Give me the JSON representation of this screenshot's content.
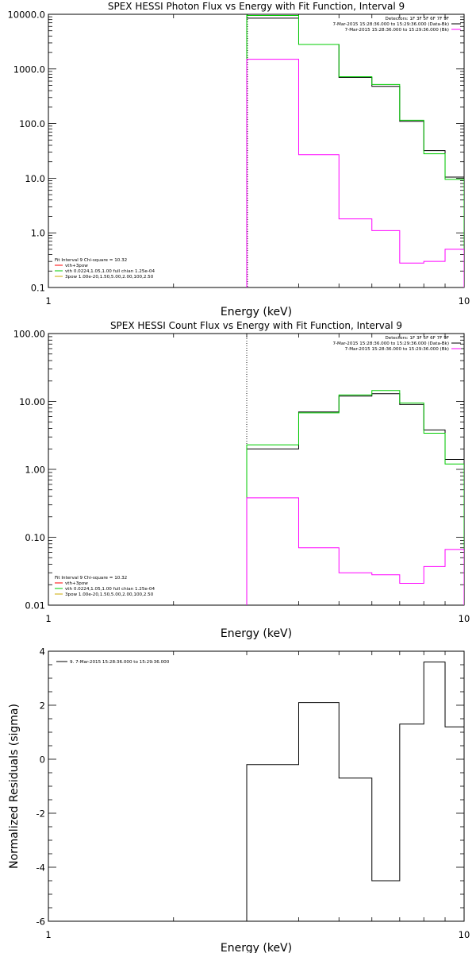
{
  "colors": {
    "data": "#000000",
    "model": "#00cc00",
    "background": "#ff00ff",
    "vth": "#ff0000",
    "vth_model": "#00cc00",
    "bpow": "#ccaa00"
  },
  "chart_data": [
    {
      "type": "line",
      "title": "SPEX HESSI Photon Flux vs Energy with Fit Function, Interval 9",
      "xlabel": "Energy (keV)",
      "ylabel": "",
      "xscale": "log",
      "yscale": "log",
      "xlim": [
        1,
        10
      ],
      "ylim": [
        0.1,
        10000
      ],
      "xticks": [
        {
          "v": 1,
          "label": "1"
        },
        {
          "v": 10,
          "label": "10"
        }
      ],
      "yticks": [
        {
          "v": 0.1,
          "label": "0.1"
        },
        {
          "v": 1,
          "label": "1.0"
        },
        {
          "v": 10,
          "label": "10.0"
        },
        {
          "v": 100,
          "label": "100.0"
        },
        {
          "v": 1000,
          "label": "1000.0"
        },
        {
          "v": 10000,
          "label": "10000.0"
        }
      ],
      "vline": {
        "x": 3.0,
        "style": "green-dotted"
      },
      "legend_lines": [
        {
          "text": "Detectors: 1F 3F 5F 6F 7F 9F",
          "color": "none"
        },
        {
          "text": "7-Mar-2015 15:28:36.000 to 15:29:36.000 (Data-Bk)",
          "color": "data"
        },
        {
          "text": "7-Mar-2015 15:28:36.000 to 15:29:36.000 (Bk)",
          "color": "background"
        }
      ],
      "fit_legend": [
        {
          "text": "Fit Interval 9   Chi-square = 10.32",
          "color": "none"
        },
        {
          "text": "vth+3pow",
          "color": "vth"
        },
        {
          "text": "vth 0.0224,1.05,1.00  full chian 1.25e-04",
          "color": "vth_model"
        },
        {
          "text": "3pow 1.00e-20,1.50,5.00,2.00,100,2.50",
          "color": "bpow"
        }
      ],
      "series": [
        {
          "key": "data",
          "style": "step",
          "edges": [
            3,
            4,
            5,
            6,
            7,
            8,
            9,
            10
          ],
          "values": [
            8500,
            2800,
            700,
            480,
            110,
            32,
            10.5
          ]
        },
        {
          "key": "model",
          "style": "step",
          "edges": [
            3,
            4,
            5,
            6,
            7,
            8,
            9,
            10
          ],
          "values": [
            9500,
            2800,
            720,
            520,
            115,
            28,
            9.5
          ]
        },
        {
          "key": "background",
          "style": "step",
          "edges": [
            3,
            4,
            5,
            6,
            7,
            8,
            9,
            10
          ],
          "values": [
            1500,
            27,
            1.8,
            1.1,
            0.28,
            0.3,
            0.5
          ]
        }
      ]
    },
    {
      "type": "line",
      "title": "SPEX HESSI Count Flux vs Energy with Fit Function, Interval 9",
      "xlabel": "Energy (keV)",
      "ylabel": "",
      "xscale": "log",
      "yscale": "log",
      "xlim": [
        1,
        10
      ],
      "ylim": [
        0.01,
        100
      ],
      "xticks": [
        {
          "v": 1,
          "label": "1"
        },
        {
          "v": 10,
          "label": "10"
        }
      ],
      "yticks": [
        {
          "v": 0.01,
          "label": "0.01"
        },
        {
          "v": 0.1,
          "label": "0.10"
        },
        {
          "v": 1,
          "label": "1.00"
        },
        {
          "v": 10,
          "label": "10.00"
        },
        {
          "v": 100,
          "label": "100.00"
        }
      ],
      "vline": {
        "x": 3.0,
        "style": "black-dotted"
      },
      "legend_lines": [
        {
          "text": "Detectors: 1F 3F 5F 6F 7F 9F",
          "color": "none"
        },
        {
          "text": "7-Mar-2015 15:28:36.000 to 15:29:36.000 (Data-Bk)",
          "color": "data"
        },
        {
          "text": "7-Mar-2015 15:28:36.000 to 15:29:36.000 (Bk)",
          "color": "background"
        }
      ],
      "fit_legend": [
        {
          "text": "Fit Interval 9   Chi-square = 10.32",
          "color": "none"
        },
        {
          "text": "vth+3pow",
          "color": "vth"
        },
        {
          "text": "vth 0.0224,1.05,1.00  full chian 1.25e-04",
          "color": "vth_model"
        },
        {
          "text": "3pow 1.00e-20,1.50,5.00,2.00,100,2.50",
          "color": "bpow"
        }
      ],
      "series": [
        {
          "key": "data",
          "style": "step",
          "edges": [
            3,
            4,
            5,
            6,
            7,
            8,
            9,
            10
          ],
          "values": [
            2.0,
            7.0,
            12.0,
            13.0,
            9.0,
            3.8,
            1.4
          ]
        },
        {
          "key": "model",
          "style": "step",
          "edges": [
            3,
            4,
            5,
            6,
            7,
            8,
            9,
            10
          ],
          "values": [
            2.3,
            6.8,
            12.5,
            14.5,
            9.5,
            3.4,
            1.2
          ]
        },
        {
          "key": "background",
          "style": "step",
          "edges": [
            3,
            4,
            5,
            6,
            7,
            8,
            9,
            10
          ],
          "values": [
            0.38,
            0.07,
            0.03,
            0.028,
            0.021,
            0.037,
            0.066
          ]
        }
      ]
    },
    {
      "type": "line",
      "title": "",
      "xlabel": "Energy (keV)",
      "ylabel": "Normalized Residuals (sigma)",
      "xscale": "log",
      "yscale": "linear",
      "xlim": [
        1,
        10
      ],
      "ylim": [
        -6,
        4
      ],
      "xticks": [
        {
          "v": 1,
          "label": "1"
        },
        {
          "v": 10,
          "label": "10"
        }
      ],
      "yticks": [
        {
          "v": -6,
          "label": "-6"
        },
        {
          "v": -4,
          "label": "-4"
        },
        {
          "v": -2,
          "label": "-2"
        },
        {
          "v": 0,
          "label": "0"
        },
        {
          "v": 2,
          "label": "2"
        },
        {
          "v": 4,
          "label": "4"
        }
      ],
      "legend_lines": [
        {
          "text": "9.  7-Mar-2015 15:28:36.000 to 15:29:36.000",
          "color": "data"
        }
      ],
      "series": [
        {
          "key": "data",
          "style": "step",
          "edges": [
            3,
            4,
            5,
            6,
            7,
            8,
            9,
            10
          ],
          "values": [
            -0.2,
            2.1,
            -0.7,
            -4.5,
            1.3,
            3.6,
            1.2
          ]
        }
      ]
    }
  ]
}
